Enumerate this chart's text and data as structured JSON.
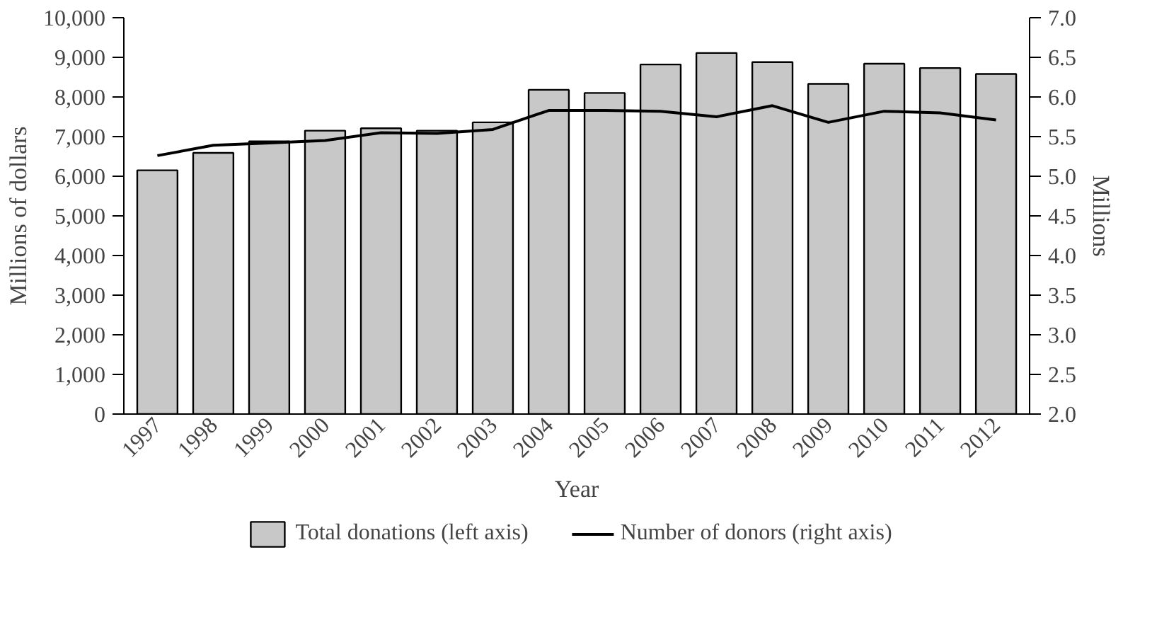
{
  "chart_data": {
    "type": "bar",
    "xlabel": "Year",
    "ylabel": "Millions of dollars",
    "y2label": "Millions",
    "categories": [
      "1997",
      "1998",
      "1999",
      "2000",
      "2001",
      "2002",
      "2003",
      "2004",
      "2005",
      "2006",
      "2007",
      "2008",
      "2009",
      "2010",
      "2011",
      "2012"
    ],
    "series": [
      {
        "name": "Total donations (left axis)",
        "color": "#c8c8c8",
        "values": [
          6150,
          6590,
          6880,
          7150,
          7210,
          7150,
          7360,
          8180,
          8100,
          8820,
          9110,
          8880,
          8330,
          8840,
          8730,
          8580
        ]
      },
      {
        "name": "Number of donors (right axis)",
        "type": "line",
        "axis": "y2",
        "color": "#000000",
        "values": [
          5.26,
          5.39,
          5.42,
          5.45,
          5.55,
          5.54,
          5.59,
          5.83,
          5.83,
          5.82,
          5.75,
          5.89,
          5.68,
          5.82,
          5.8,
          5.71
        ]
      }
    ],
    "ylim": [
      0,
      10000
    ],
    "yticks": [
      {
        "value": 0,
        "label": "0"
      },
      {
        "value": 1000,
        "label": "1,000"
      },
      {
        "value": 2000,
        "label": "2,000"
      },
      {
        "value": 3000,
        "label": "3,000"
      },
      {
        "value": 4000,
        "label": "4,000"
      },
      {
        "value": 5000,
        "label": "5,000"
      },
      {
        "value": 6000,
        "label": "6,000"
      },
      {
        "value": 7000,
        "label": "7,000"
      },
      {
        "value": 8000,
        "label": "8,000"
      },
      {
        "value": 9000,
        "label": "9,000"
      },
      {
        "value": 10000,
        "label": "10,000"
      }
    ],
    "y2lim": [
      2.0,
      7.0
    ],
    "y2ticks": [
      {
        "value": 2,
        "label": "2.0"
      },
      {
        "value": 2.5,
        "label": "2.5"
      },
      {
        "value": 3,
        "label": "3.0"
      },
      {
        "value": 3.5,
        "label": "3.5"
      },
      {
        "value": 4,
        "label": "4.0"
      },
      {
        "value": 4.5,
        "label": "4.5"
      },
      {
        "value": 5,
        "label": "5.0"
      },
      {
        "value": 5.5,
        "label": "5.5"
      },
      {
        "value": 6,
        "label": "6.0"
      },
      {
        "value": 6.5,
        "label": "6.5"
      },
      {
        "value": 7,
        "label": "7.0"
      }
    ],
    "grid": false,
    "legend": "bottom"
  }
}
